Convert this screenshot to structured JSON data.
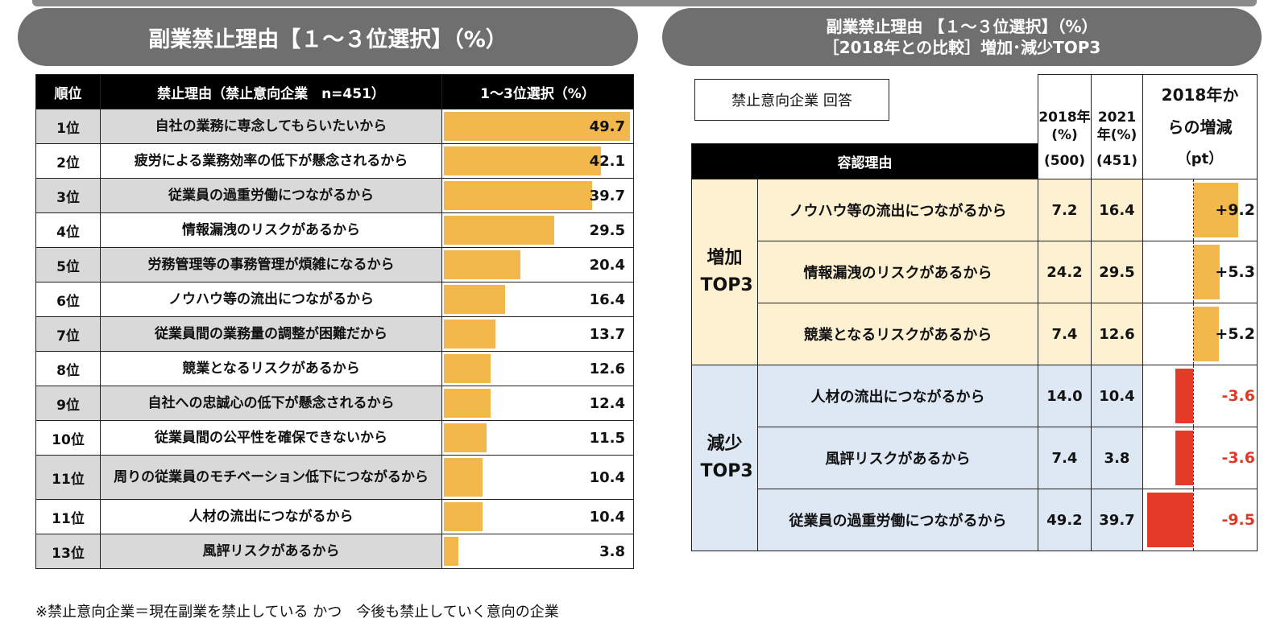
{
  "left": {
    "title": "副業禁止理由【１～３位選択】（%）",
    "headers": {
      "rank": "順位",
      "reason": "禁止理由（禁止意向企業　n=451）",
      "value": "1～3位選択（%）"
    },
    "max_value": 50,
    "rows": [
      {
        "rank": "1位",
        "reason": "自社の業務に専念してもらいたいから",
        "value": 49.7,
        "label": "49.7"
      },
      {
        "rank": "2位",
        "reason": "疲労による業務効率の低下が懸念されるから",
        "value": 42.1,
        "label": "42.1"
      },
      {
        "rank": "3位",
        "reason": "従業員の過重労働につながるから",
        "value": 39.7,
        "label": "39.7"
      },
      {
        "rank": "4位",
        "reason": "情報漏洩のリスクがあるから",
        "value": 29.5,
        "label": "29.5"
      },
      {
        "rank": "5位",
        "reason": "労務管理等の事務管理が煩雑になるから",
        "value": 20.4,
        "label": "20.4"
      },
      {
        "rank": "6位",
        "reason": "ノウハウ等の流出につながるから",
        "value": 16.4,
        "label": "16.4"
      },
      {
        "rank": "7位",
        "reason": "従業員間の業務量の調整が困難だから",
        "value": 13.7,
        "label": "13.7"
      },
      {
        "rank": "8位",
        "reason": "競業となるリスクがあるから",
        "value": 12.6,
        "label": "12.6"
      },
      {
        "rank": "9位",
        "reason": "自社への忠誠心の低下が懸念されるから",
        "value": 12.4,
        "label": "12.4"
      },
      {
        "rank": "10位",
        "reason": "従業員間の公平性を確保できないから",
        "value": 11.5,
        "label": "11.5"
      },
      {
        "rank": "11位",
        "reason": "周りの従業員のモチベーション低下につながるから",
        "value": 10.4,
        "label": "10.4"
      },
      {
        "rank": "11位",
        "reason": "人材の流出につながるから",
        "value": 10.4,
        "label": "10.4"
      },
      {
        "rank": "13位",
        "reason": "風評リスクがあるから",
        "value": 3.8,
        "label": "3.8"
      }
    ]
  },
  "right": {
    "title_line1": "副業禁止理由 【１～３位選択】（%）",
    "title_line2": "［2018年との比較］増加･減少TOP3",
    "legend": "禁止意向企業 回答",
    "col_2018": "2018年(%)",
    "col_2021": "2021年(%)",
    "col_diff": "2018年からの増減",
    "unit_pt": "（pt）",
    "reason_header": "容認理由",
    "n_2018": "(500)",
    "n_2021": "(451)",
    "increase_group": "増加TOP3",
    "decrease_group": "減少TOP3",
    "increase": [
      {
        "reason": "ノウハウ等の流出につながるから",
        "y2018": "7.2",
        "y2021": "16.4",
        "diff": 9.2,
        "diff_label": "+9.2"
      },
      {
        "reason": "情報漏洩のリスクがあるから",
        "y2018": "24.2",
        "y2021": "29.5",
        "diff": 5.3,
        "diff_label": "+5.3"
      },
      {
        "reason": "競業となるリスクがあるから",
        "y2018": "7.4",
        "y2021": "12.6",
        "diff": 5.2,
        "diff_label": "+5.2"
      }
    ],
    "decrease": [
      {
        "reason": "人材の流出につながるから",
        "y2018": "14.0",
        "y2021": "10.4",
        "diff": -3.6,
        "diff_label": "-3.6"
      },
      {
        "reason": "風評リスクがあるから",
        "y2018": "7.4",
        "y2021": "3.8",
        "diff": -3.6,
        "diff_label": "-3.6"
      },
      {
        "reason": "従業員の過重労働につながるから",
        "y2018": "49.2",
        "y2021": "39.7",
        "diff": -9.5,
        "diff_label": "-9.5"
      }
    ]
  },
  "note": "※禁止意向企業＝現在副業を禁止している かつ　今後も禁止していく意向の企業",
  "colors": {
    "bar": "#f2b84b",
    "negative": "#e53a27",
    "increase_bg": "#fdf1d2",
    "decrease_bg": "#dde8f4",
    "title_pill": "#6f6f6f"
  },
  "chart_data": [
    {
      "type": "bar",
      "title": "副業禁止理由【１～３位選択】（%）",
      "categories": [
        "自社の業務に専念してもらいたいから",
        "疲労による業務効率の低下が懸念されるから",
        "従業員の過重労働につながるから",
        "情報漏洩のリスクがあるから",
        "労務管理等の事務管理が煩雑になるから",
        "ノウハウ等の流出につながるから",
        "従業員間の業務量の調整が困難だから",
        "競業となるリスクがあるから",
        "自社への忠誠心の低下が懸念されるから",
        "従業員間の公平性を確保できないから",
        "周りの従業員のモチベーション低下につながるから",
        "人材の流出につながるから",
        "風評リスクがあるから"
      ],
      "values": [
        49.7,
        42.1,
        39.7,
        29.5,
        20.4,
        16.4,
        13.7,
        12.6,
        12.4,
        11.5,
        10.4,
        10.4,
        3.8
      ],
      "xlim": [
        0,
        50
      ]
    },
    {
      "type": "table",
      "title": "［2018年との比較］増加･減少TOP3",
      "categories": [
        "ノウハウ等の流出につながるから",
        "情報漏洩のリスクがあるから",
        "競業となるリスクがあるから",
        "人材の流出につながるから",
        "風評リスクがあるから",
        "従業員の過重労働につながるから"
      ],
      "series": [
        {
          "name": "2018年",
          "values": [
            7.2,
            24.2,
            7.4,
            14.0,
            7.4,
            49.2
          ]
        },
        {
          "name": "2021年",
          "values": [
            16.4,
            29.5,
            12.6,
            10.4,
            3.8,
            39.7
          ]
        },
        {
          "name": "2018年からの増減",
          "values": [
            9.2,
            5.3,
            5.2,
            -3.6,
            -3.6,
            -9.5
          ]
        }
      ]
    }
  ]
}
